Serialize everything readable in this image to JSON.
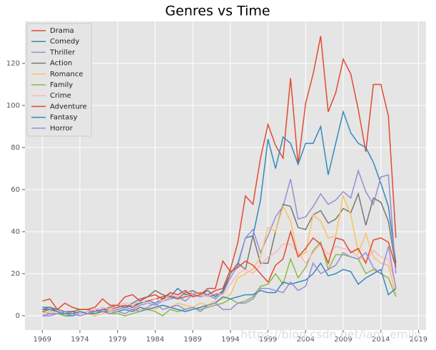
{
  "chart_data": {
    "type": "line",
    "title": "Genres vs Time",
    "legend": "upper left",
    "grid": true,
    "watermark": "https://blog.csdn.net/iam_emily",
    "x": [
      1969,
      1970,
      1971,
      1972,
      1973,
      1974,
      1975,
      1976,
      1977,
      1978,
      1979,
      1980,
      1981,
      1982,
      1983,
      1984,
      1985,
      1986,
      1987,
      1988,
      1989,
      1990,
      1991,
      1992,
      1993,
      1994,
      1995,
      1996,
      1997,
      1998,
      1999,
      2000,
      2001,
      2002,
      2003,
      2004,
      2005,
      2006,
      2007,
      2008,
      2009,
      2010,
      2011,
      2012,
      2013,
      2014,
      2015,
      2016
    ],
    "xlim": [
      1966.7,
      2020
    ],
    "xticks": [
      1969,
      1974,
      1979,
      1984,
      1989,
      1994,
      1999,
      2004,
      2009,
      2014,
      2019
    ],
    "ylim": [
      -6.8,
      140
    ],
    "yticks": [
      0,
      20,
      40,
      60,
      80,
      100,
      120
    ],
    "series": [
      {
        "name": "Drama",
        "color": "#E24A33",
        "values": [
          2,
          3,
          2,
          1,
          2,
          1,
          2,
          2,
          3,
          3,
          4,
          5,
          4,
          6,
          7,
          8,
          9,
          10,
          8,
          9,
          10,
          11,
          10,
          12,
          13,
          22,
          35,
          57,
          53,
          75,
          91,
          81,
          75,
          113,
          72,
          101,
          115,
          133,
          97,
          106,
          122,
          115,
          98,
          78,
          110,
          110,
          95,
          37
        ]
      },
      {
        "name": "Comedy",
        "color": "#348ABD",
        "values": [
          3,
          4,
          2,
          0,
          0,
          1,
          2,
          3,
          2,
          2,
          3,
          4,
          5,
          6,
          7,
          6,
          8,
          9,
          13,
          10,
          11,
          10,
          12,
          9,
          12,
          20,
          25,
          37,
          38,
          55,
          84,
          70,
          85,
          82,
          72,
          82,
          82,
          90,
          67,
          82,
          97,
          87,
          82,
          80,
          73,
          63,
          52,
          25
        ]
      },
      {
        "name": "Thriller",
        "color": "#988ED5",
        "values": [
          0,
          0,
          1,
          2,
          1,
          2,
          1,
          2,
          3,
          2,
          3,
          4,
          3,
          5,
          6,
          5,
          7,
          8,
          9,
          7,
          10,
          9,
          10,
          8,
          11,
          18,
          24,
          37,
          41,
          30,
          38,
          47,
          52,
          65,
          46,
          47,
          52,
          58,
          53,
          55,
          59,
          56,
          69,
          59,
          53,
          66,
          67,
          20
        ]
      },
      {
        "name": "Action",
        "color": "#777777",
        "values": [
          4,
          4,
          3,
          2,
          2,
          3,
          3,
          2,
          3,
          4,
          5,
          4,
          6,
          8,
          9,
          12,
          10,
          9,
          8,
          11,
          12,
          10,
          9,
          10,
          11,
          20,
          25,
          22,
          38,
          25,
          25,
          40,
          53,
          52,
          42,
          41,
          48,
          50,
          44,
          46,
          51,
          49,
          58,
          43,
          56,
          54,
          45,
          23
        ]
      },
      {
        "name": "Romance",
        "color": "#FBC15E",
        "values": [
          1,
          2,
          2,
          1,
          1,
          2,
          1,
          0,
          1,
          2,
          2,
          3,
          2,
          3,
          4,
          3,
          5,
          4,
          6,
          5,
          4,
          6,
          5,
          7,
          8,
          10,
          18,
          20,
          22,
          28,
          42,
          40,
          52,
          45,
          28,
          30,
          48,
          45,
          37,
          38,
          57,
          48,
          30,
          39,
          28,
          25,
          24,
          10
        ]
      },
      {
        "name": "Family",
        "color": "#8EBA42",
        "values": [
          2,
          1,
          1,
          0,
          1,
          1,
          2,
          1,
          2,
          1,
          1,
          0,
          1,
          2,
          3,
          2,
          0,
          3,
          2,
          3,
          4,
          3,
          4,
          5,
          6,
          8,
          6,
          7,
          9,
          14,
          15,
          20,
          15,
          27,
          18,
          23,
          31,
          35,
          22,
          29,
          29,
          28,
          27,
          20,
          22,
          20,
          18,
          9
        ]
      },
      {
        "name": "Crime",
        "color": "#FFB5B8",
        "values": [
          1,
          2,
          1,
          2,
          1,
          1,
          2,
          3,
          4,
          3,
          5,
          6,
          5,
          7,
          6,
          8,
          7,
          10,
          9,
          12,
          11,
          10,
          9,
          11,
          10,
          15,
          20,
          22,
          20,
          24,
          28,
          30,
          34,
          34,
          30,
          25,
          30,
          34,
          29,
          33,
          32,
          31,
          28,
          26,
          31,
          28,
          27,
          14
        ]
      },
      {
        "name": "Adventure",
        "color": "#E24A33",
        "values": [
          7,
          8,
          3,
          6,
          4,
          3,
          3,
          4,
          8,
          5,
          5,
          9,
          10,
          7,
          9,
          10,
          8,
          11,
          10,
          12,
          9,
          10,
          13,
          13,
          26,
          21,
          23,
          26,
          24,
          20,
          16,
          24,
          27,
          40,
          28,
          32,
          37,
          34,
          25,
          37,
          36,
          30,
          32,
          25,
          36,
          37,
          35,
          23
        ]
      },
      {
        "name": "Fantasy",
        "color": "#348ABD",
        "values": [
          3,
          3,
          2,
          1,
          1,
          2,
          1,
          1,
          2,
          1,
          2,
          3,
          2,
          4,
          3,
          4,
          5,
          4,
          3,
          2,
          3,
          4,
          5,
          6,
          9,
          8,
          9,
          10,
          10,
          12,
          11,
          11,
          16,
          15,
          16,
          17,
          20,
          25,
          19,
          20,
          22,
          21,
          15,
          18,
          20,
          22,
          10,
          13
        ]
      },
      {
        "name": "Horror",
        "color": "#988ED5",
        "values": [
          0,
          1,
          1,
          2,
          1,
          0,
          1,
          2,
          2,
          1,
          2,
          1,
          3,
          2,
          4,
          6,
          3,
          4,
          5,
          3,
          4,
          2,
          5,
          6,
          3,
          3,
          6,
          6,
          8,
          13,
          13,
          12,
          11,
          16,
          12,
          14,
          25,
          20,
          22,
          24,
          30,
          28,
          27,
          30,
          23,
          20,
          33,
          13
        ]
      }
    ]
  }
}
